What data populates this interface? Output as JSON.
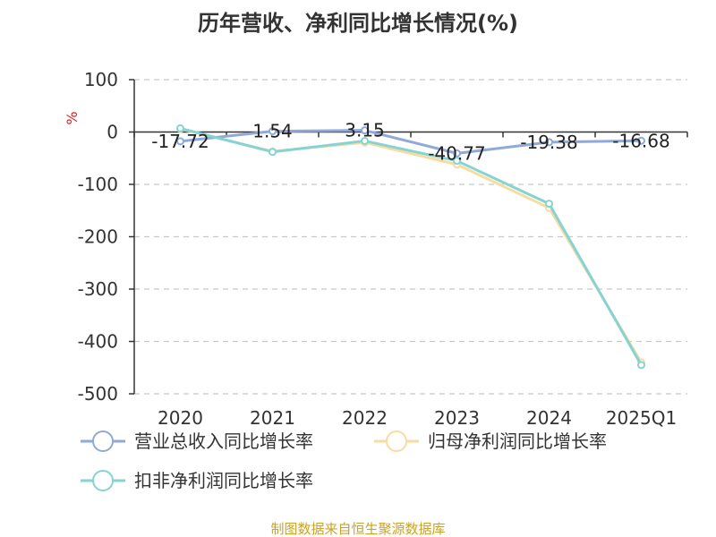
{
  "chart_data": {
    "type": "line",
    "title": "历年营收、净利同比增长情况(%)",
    "ylabel": "%",
    "categories": [
      "2020",
      "2021",
      "2022",
      "2023",
      "2024",
      "2025Q1"
    ],
    "ylim": [
      -500,
      100
    ],
    "yticks": [
      100,
      0,
      -100,
      -200,
      -300,
      -400,
      -500
    ],
    "grid": "horizontal-dashed",
    "legend_position": "bottom-left",
    "series": [
      {
        "name": "营业总收入同比增长率",
        "color": "#8fa9d8",
        "values": [
          -17.72,
          1.54,
          3.15,
          -40.77,
          -19.38,
          -16.68
        ],
        "labels": [
          "-17.72",
          "1.54",
          "3.15",
          "-40.77",
          "-19.38",
          "-16.68"
        ]
      },
      {
        "name": "归母净利润同比增长率",
        "color": "#f7dca0",
        "values": [
          6,
          -37,
          -20,
          -62,
          -145,
          -440
        ]
      },
      {
        "name": "扣非净利润同比增长率",
        "color": "#86d3d3",
        "values": [
          7,
          -38,
          -17,
          -55,
          -137,
          -445
        ]
      }
    ]
  },
  "source": "制图数据来自恒生聚源数据库"
}
